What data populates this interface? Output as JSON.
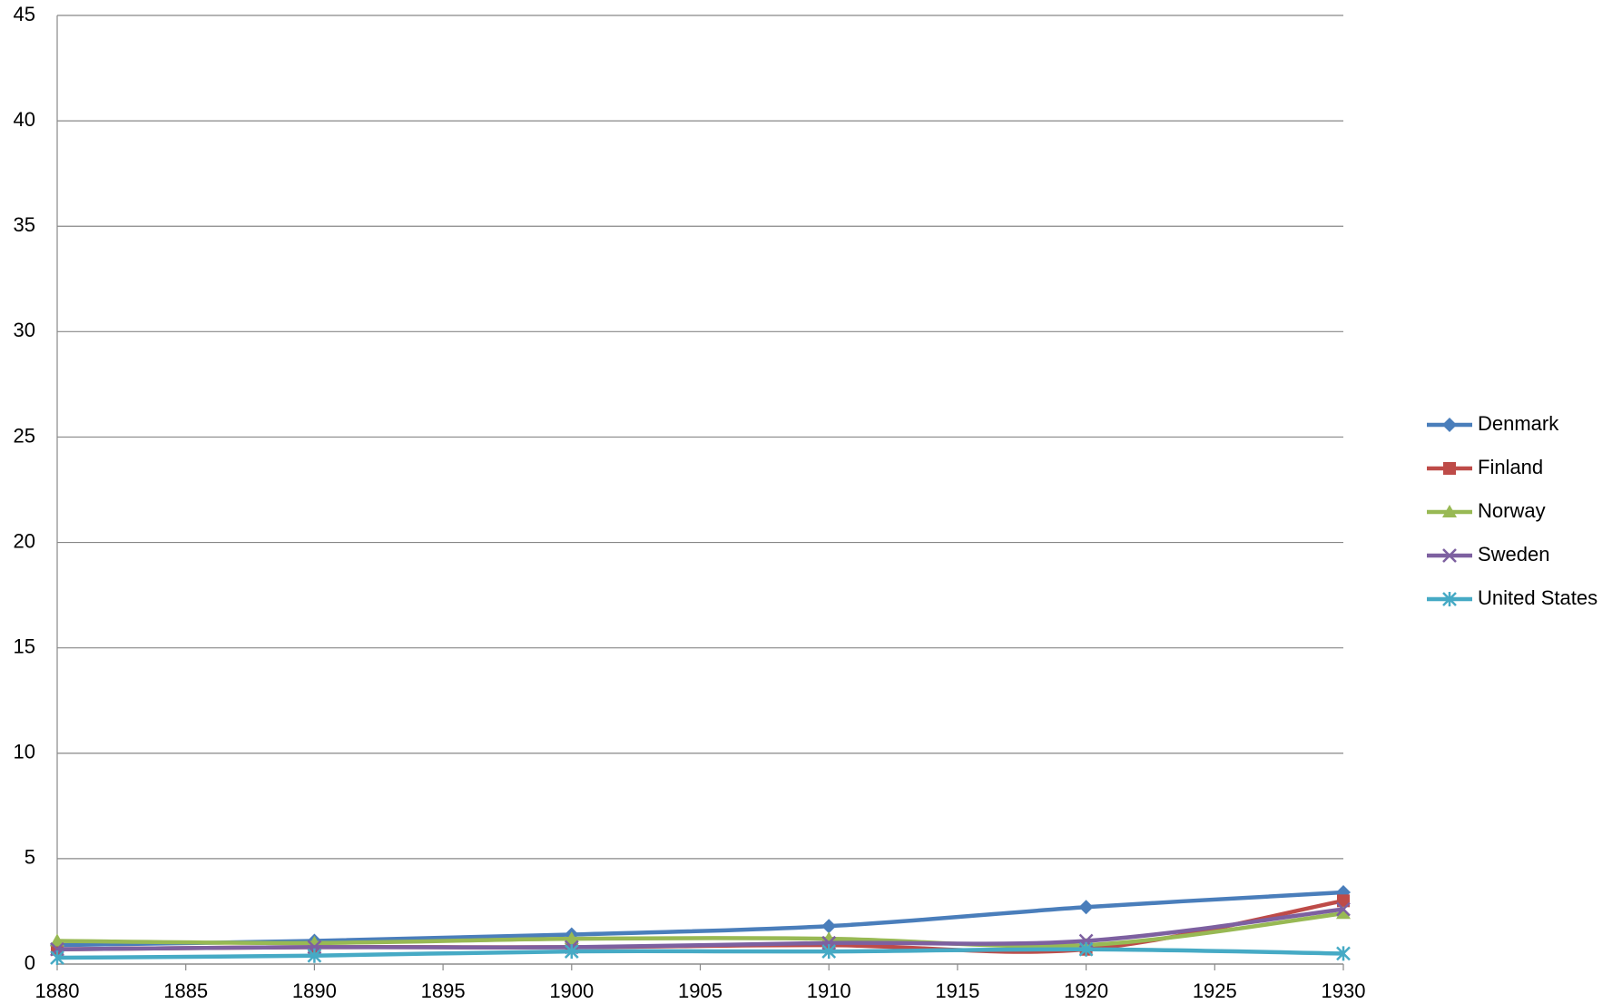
{
  "chart_data": {
    "type": "line",
    "x": [
      1880,
      1890,
      1900,
      1910,
      1920,
      1930
    ],
    "xlim": [
      1880,
      1930
    ],
    "xticks": [
      1880,
      1885,
      1890,
      1895,
      1900,
      1905,
      1910,
      1915,
      1920,
      1925,
      1930
    ],
    "ylim": [
      0,
      45
    ],
    "yticks": [
      0,
      5,
      10,
      15,
      20,
      25,
      30,
      35,
      40,
      45
    ],
    "grid": true,
    "smooth": true,
    "legend": "right",
    "series": [
      {
        "name": "Denmark",
        "color": "#4a7ebb",
        "marker": "diamond",
        "values": [
          0.9,
          1.1,
          1.4,
          1.8,
          2.7,
          3.4
        ]
      },
      {
        "name": "Finland",
        "color": "#be4b48",
        "marker": "square",
        "values": [
          0.7,
          0.8,
          0.8,
          0.9,
          0.7,
          3.0
        ]
      },
      {
        "name": "Norway",
        "color": "#98b954",
        "marker": "triangle",
        "values": [
          1.1,
          1.0,
          1.2,
          1.2,
          0.9,
          2.4
        ]
      },
      {
        "name": "Sweden",
        "color": "#7d60a0",
        "marker": "x",
        "values": [
          0.7,
          0.8,
          0.8,
          1.0,
          1.1,
          2.6
        ]
      },
      {
        "name": "United States",
        "color": "#46aac5",
        "marker": "star",
        "values": [
          0.3,
          0.4,
          0.6,
          0.6,
          0.7,
          0.5
        ]
      }
    ]
  }
}
